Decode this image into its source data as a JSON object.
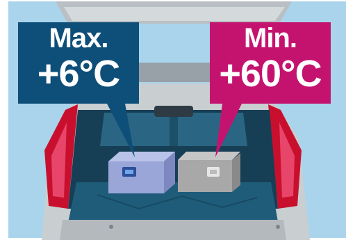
{
  "labels": {
    "max": {
      "title": "Max.",
      "temperature": "+6°C"
    },
    "min": {
      "title": "Min.",
      "temperature": "+60°C"
    }
  },
  "colors": {
    "sky": "#a9d4ec",
    "max_box": "#0e4f79",
    "min_box": "#c4136f",
    "cargo_liner": "#1f5c7a",
    "car_body": "#c9ced1",
    "tail_light": "#c8102e",
    "cool_box": "#9aa6d8",
    "warm_box": "#a8a8a8"
  },
  "icons": [
    "car-rear-illustration",
    "cool-box-icon",
    "warm-box-icon"
  ]
}
